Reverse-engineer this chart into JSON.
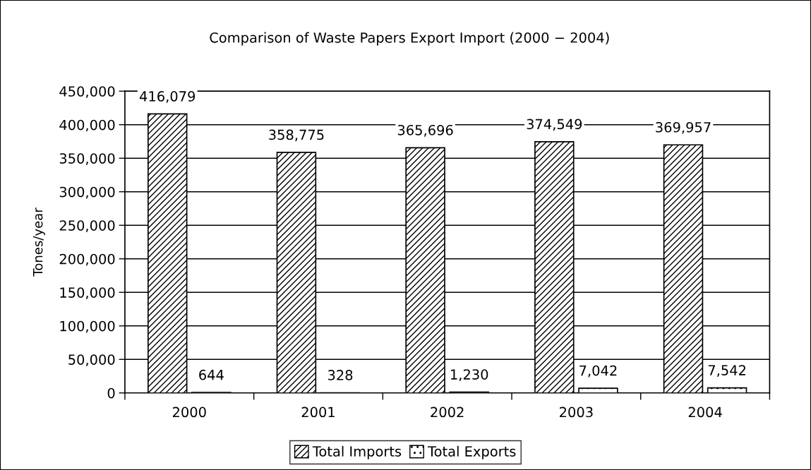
{
  "chart_data": {
    "type": "bar",
    "title": "Comparison of Waste Papers Export Import (2000 − 2004)",
    "ylabel": "Tones/year",
    "categories": [
      "2000",
      "2001",
      "2002",
      "2003",
      "2004"
    ],
    "series": [
      {
        "name": "Total Imports",
        "color": "#000000",
        "values": [
          416079,
          358775,
          365696,
          374549,
          369957
        ],
        "value_labels": [
          "416,079",
          "358,775",
          "365,696",
          "374,549",
          "369,957"
        ]
      },
      {
        "name": "Total Exports",
        "color": "#000000",
        "values": [
          644,
          328,
          1230,
          7042,
          7542
        ],
        "value_labels": [
          "644",
          "328",
          "1,230",
          "7,042",
          "7,542"
        ]
      }
    ],
    "ylim": [
      0,
      450000
    ],
    "yticks": [
      0,
      {
        "value": 50000,
        "label": "50,000"
      },
      {
        "value": 100000,
        "label": "100,000"
      },
      {
        "value": 150000,
        "label": "150,000"
      },
      {
        "value": 200000,
        "label": "200,000"
      },
      {
        "value": 250000,
        "label": "250,000"
      },
      {
        "value": 300000,
        "label": "300,000"
      },
      {
        "value": 350000,
        "label": "350,000"
      },
      {
        "value": 400000,
        "label": "400,000"
      },
      {
        "value": 450000,
        "label": "450,000"
      }
    ],
    "grid": "y",
    "legend": "bottom"
  }
}
